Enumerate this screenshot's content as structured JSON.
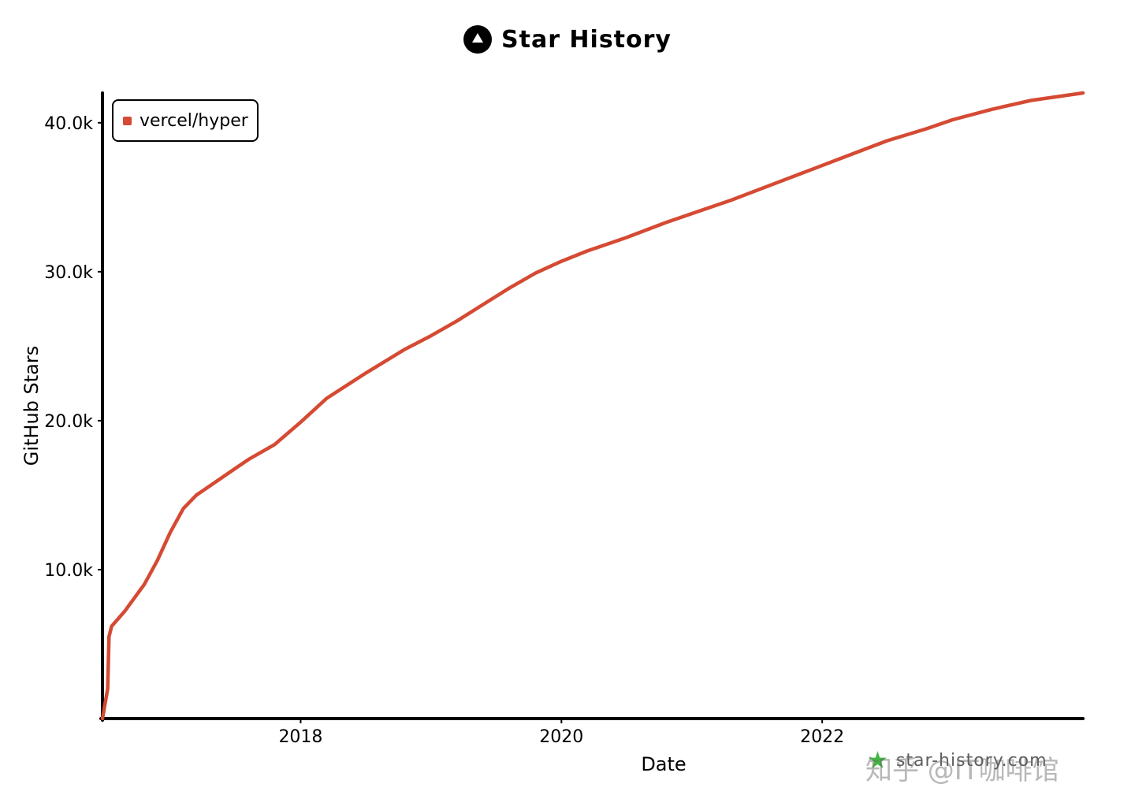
{
  "header": {
    "title": "Star History",
    "icon": "star-history-logo-icon"
  },
  "legend": {
    "label": "vercel/hyper",
    "color": "#d54a33"
  },
  "watermark": {
    "site": "star-history.com",
    "icon": "star-icon",
    "zhihu": "知乎 @IT咖啡馆"
  },
  "chart_data": {
    "type": "line",
    "title": "Star History",
    "xlabel": "Date",
    "ylabel": "GitHub Stars",
    "xlim": [
      2016.48,
      2024.0
    ],
    "ylim": [
      0,
      42000
    ],
    "x_ticks": [
      {
        "value": 2018,
        "label": "2018"
      },
      {
        "value": 2020,
        "label": "2020"
      },
      {
        "value": 2022,
        "label": "2022"
      }
    ],
    "y_ticks": [
      {
        "value": 10000,
        "label": "10.0k"
      },
      {
        "value": 20000,
        "label": "20.0k"
      },
      {
        "value": 30000,
        "label": "30.0k"
      },
      {
        "value": 40000,
        "label": "40.0k"
      }
    ],
    "series": [
      {
        "name": "vercel/hyper",
        "color": "#d54a33",
        "x": [
          2016.48,
          2016.52,
          2016.53,
          2016.55,
          2016.65,
          2016.8,
          2016.9,
          2017.0,
          2017.1,
          2017.2,
          2017.3,
          2017.5,
          2017.6,
          2017.8,
          2018.0,
          2018.2,
          2018.5,
          2018.8,
          2019.0,
          2019.2,
          2019.4,
          2019.6,
          2019.8,
          2020.0,
          2020.2,
          2020.5,
          2020.8,
          2021.0,
          2021.3,
          2021.6,
          2021.9,
          2022.2,
          2022.5,
          2022.8,
          2023.0,
          2023.3,
          2023.6,
          2024.0
        ],
        "values": [
          0,
          2000,
          5500,
          6200,
          7200,
          9000,
          10600,
          12500,
          14100,
          15000,
          15600,
          16800,
          17400,
          18400,
          19900,
          21500,
          23200,
          24800,
          25700,
          26700,
          27800,
          28900,
          29900,
          30700,
          31400,
          32300,
          33300,
          33900,
          34800,
          35800,
          36800,
          37800,
          38800,
          39600,
          40200,
          40900,
          41500,
          42000
        ]
      }
    ]
  }
}
